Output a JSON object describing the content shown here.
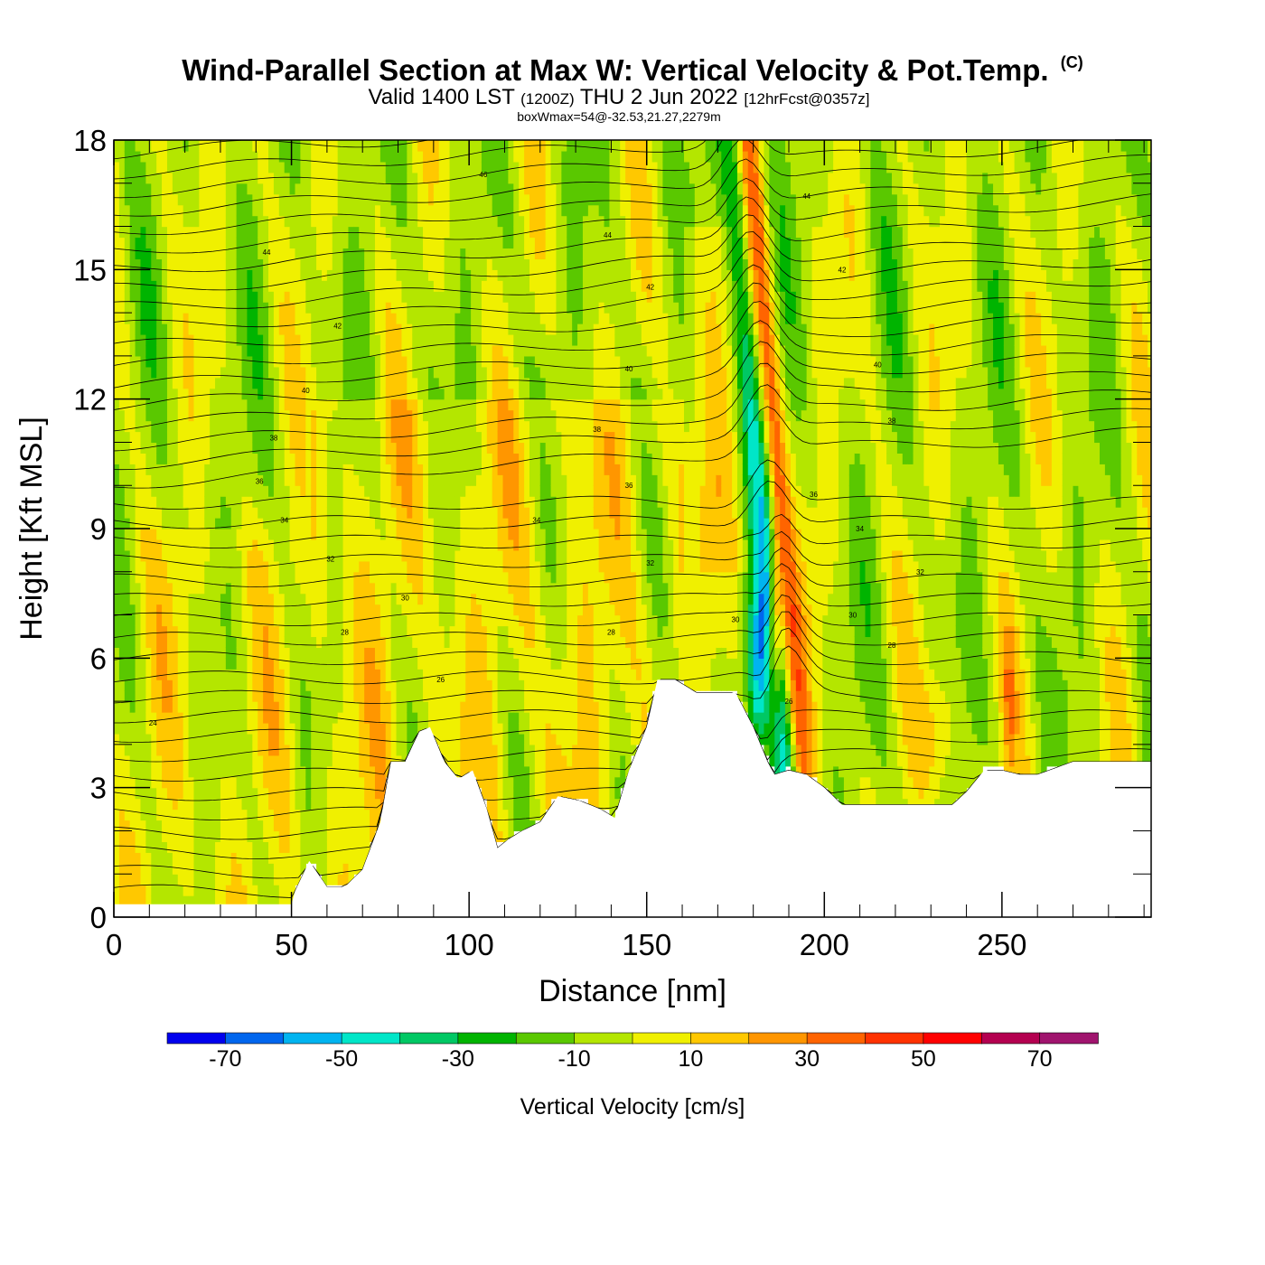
{
  "chart_data": {
    "type": "heatmap",
    "title": "Wind-Parallel Section at Max W: Vertical Velocity & Pot.Temp.",
    "title_mark": "(C)",
    "subtitle": {
      "prefix": "Valid 1400 LST",
      "utc": "(1200Z)",
      "date": "THU 2 Jun 2022",
      "forecast": "[12hrFcst@0357z]"
    },
    "annotation": "boxWmax=54@-32.53,21.27,2279m",
    "xlabel": "Distance [nm]",
    "ylabel": "Height [Kft MSL]",
    "xlim": [
      0,
      292
    ],
    "ylim": [
      0,
      18
    ],
    "xticks": [
      "0",
      "50",
      "100",
      "150",
      "200",
      "250"
    ],
    "yticks": [
      "0",
      "3",
      "6",
      "9",
      "12",
      "15",
      "18"
    ],
    "grid": false,
    "colorbar": {
      "title": "Vertical Velocity [cm/s]",
      "bounds": [
        -80,
        -70,
        -60,
        -50,
        -40,
        -30,
        -20,
        -10,
        0,
        10,
        20,
        30,
        40,
        50,
        60,
        70,
        80
      ],
      "labels": [
        "-70",
        "-50",
        "-30",
        "-10",
        "10",
        "30",
        "50",
        "70"
      ],
      "colors": [
        "#0000ee",
        "#0066ee",
        "#00b4f0",
        "#00e6c8",
        "#00c864",
        "#00b400",
        "#5ac800",
        "#b4e600",
        "#f0f000",
        "#ffc800",
        "#ff9600",
        "#ff6400",
        "#ff3200",
        "#ff0000",
        "#b40050",
        "#a0146e"
      ]
    },
    "terrain_profile": {
      "x": [
        0,
        50,
        51,
        55,
        60,
        65,
        70,
        75,
        78,
        82,
        86,
        89,
        93,
        97,
        101,
        105,
        108,
        111,
        115,
        120,
        125,
        131,
        137,
        141,
        145,
        150,
        153,
        158,
        164,
        170,
        175,
        180,
        184,
        186,
        190,
        195,
        200,
        205,
        212,
        220,
        228,
        236,
        240,
        245,
        250,
        255,
        260,
        270,
        280,
        292
      ],
      "y": [
        0.3,
        0.3,
        0.6,
        1.3,
        0.7,
        0.7,
        1.1,
        2.2,
        3.6,
        3.6,
        4.3,
        4.4,
        3.6,
        3.2,
        3.4,
        2.5,
        1.6,
        1.8,
        2.0,
        2.2,
        2.8,
        2.7,
        2.5,
        2.3,
        3.4,
        4.4,
        5.5,
        5.5,
        5.2,
        5.2,
        5.2,
        4.4,
        3.6,
        3.3,
        3.4,
        3.3,
        3.0,
        2.6,
        2.6,
        2.6,
        2.6,
        2.6,
        2.9,
        3.4,
        3.4,
        3.3,
        3.3,
        3.6,
        3.6,
        3.6
      ]
    },
    "theta_contour_labels": [
      {
        "text": "46",
        "x": 104,
        "y": 17.2
      },
      {
        "text": "44",
        "x": 43,
        "y": 15.4
      },
      {
        "text": "44",
        "x": 139,
        "y": 15.8
      },
      {
        "text": "44",
        "x": 195,
        "y": 16.7
      },
      {
        "text": "42",
        "x": 63,
        "y": 13.7
      },
      {
        "text": "42",
        "x": 151,
        "y": 14.6
      },
      {
        "text": "42",
        "x": 205,
        "y": 15.0
      },
      {
        "text": "40",
        "x": 54,
        "y": 12.2
      },
      {
        "text": "40",
        "x": 145,
        "y": 12.7
      },
      {
        "text": "40",
        "x": 215,
        "y": 12.8
      },
      {
        "text": "38",
        "x": 45,
        "y": 11.1
      },
      {
        "text": "38",
        "x": 136,
        "y": 11.3
      },
      {
        "text": "38",
        "x": 219,
        "y": 11.5
      },
      {
        "text": "36",
        "x": 41,
        "y": 10.1
      },
      {
        "text": "36",
        "x": 145,
        "y": 10.0
      },
      {
        "text": "36",
        "x": 197,
        "y": 9.8
      },
      {
        "text": "34",
        "x": 48,
        "y": 9.2
      },
      {
        "text": "34",
        "x": 119,
        "y": 9.2
      },
      {
        "text": "34",
        "x": 210,
        "y": 9.0
      },
      {
        "text": "32",
        "x": 61,
        "y": 8.3
      },
      {
        "text": "32",
        "x": 151,
        "y": 8.2
      },
      {
        "text": "32",
        "x": 227,
        "y": 8.0
      },
      {
        "text": "30",
        "x": 82,
        "y": 7.4
      },
      {
        "text": "30",
        "x": 175,
        "y": 6.9
      },
      {
        "text": "30",
        "x": 208,
        "y": 7.0
      },
      {
        "text": "28",
        "x": 65,
        "y": 6.6
      },
      {
        "text": "28",
        "x": 140,
        "y": 6.6
      },
      {
        "text": "28",
        "x": 219,
        "y": 6.3
      },
      {
        "text": "26",
        "x": 92,
        "y": 5.5
      },
      {
        "text": "26",
        "x": 190,
        "y": 5.0
      },
      {
        "text": "24",
        "x": 11,
        "y": 4.5
      }
    ]
  }
}
